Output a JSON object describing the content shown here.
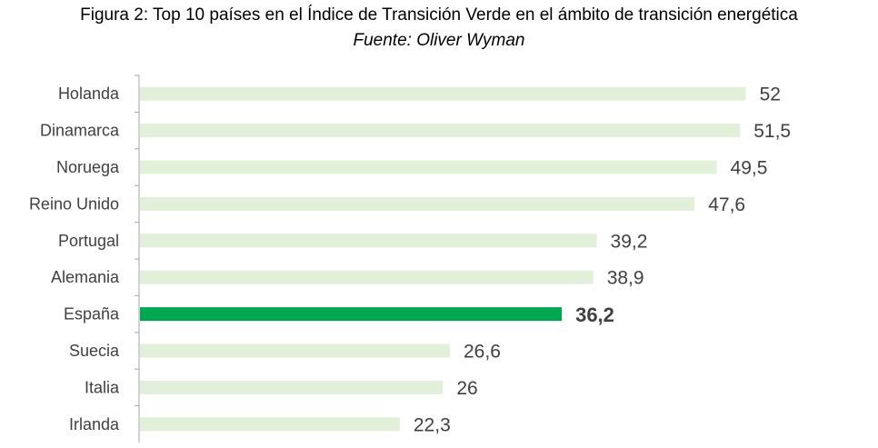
{
  "header": {
    "title": "Figura 2: Top 10 países en el Índice de Transición Verde en el ámbito de transición energética",
    "source": "Fuente: Oliver Wyman"
  },
  "colors": {
    "bar": "#e2f0d9",
    "highlight": "#00a650",
    "axis": "#a6a6a6",
    "text": "#404040"
  },
  "chart_data": {
    "type": "bar",
    "orientation": "horizontal",
    "title": "Figura 2: Top 10 países en el Índice de Transición Verde en el ámbito de transición energética",
    "subtitle": "Fuente: Oliver Wyman",
    "categories": [
      "Holanda",
      "Dinamarca",
      "Noruega",
      "Reino Unido",
      "Portugal",
      "Alemania",
      "España",
      "Suecia",
      "Italia",
      "Irlanda"
    ],
    "values": [
      52,
      51.5,
      49.5,
      47.6,
      39.2,
      38.9,
      36.2,
      26.6,
      26,
      22.3
    ],
    "value_labels": [
      "52",
      "51,5",
      "49,5",
      "47,6",
      "39,2",
      "38,9",
      "36,2",
      "26,6",
      "26",
      "22,3"
    ],
    "highlight": "España",
    "xlim": [
      0,
      55
    ],
    "grid": false,
    "legend": false
  }
}
